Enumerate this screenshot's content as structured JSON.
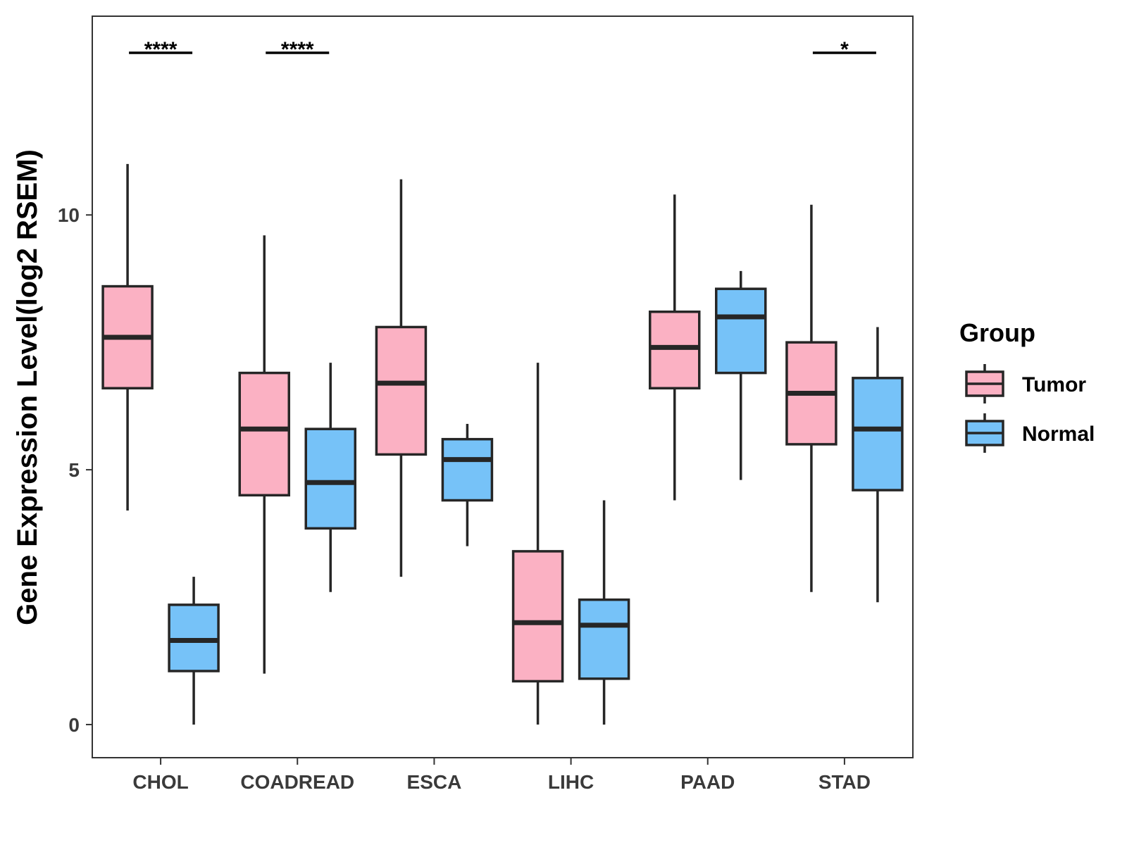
{
  "chart_data": {
    "type": "boxplot",
    "title": "",
    "xlabel": "",
    "ylabel": "Gene Expression Level(log2 RSEM)",
    "ylim": [
      -0.65,
      13.9
    ],
    "yticks": [
      0,
      5,
      10
    ],
    "ytick_labels": [
      "0",
      "5",
      "10"
    ],
    "grid": false,
    "categories": [
      "CHOL",
      "COADREAD",
      "ESCA",
      "LIHC",
      "PAAD",
      "STAD"
    ],
    "series": [
      {
        "name": "Tumor",
        "color": "#FBB1C3",
        "boxes": [
          {
            "whisker_low": 4.2,
            "q1": 6.6,
            "median": 7.6,
            "q3": 8.6,
            "whisker_high": 11.0
          },
          {
            "whisker_low": 1.0,
            "q1": 4.5,
            "median": 5.8,
            "q3": 6.9,
            "whisker_high": 9.6
          },
          {
            "whisker_low": 2.9,
            "q1": 5.3,
            "median": 6.7,
            "q3": 7.8,
            "whisker_high": 10.7
          },
          {
            "whisker_low": 0.0,
            "q1": 0.85,
            "median": 2.0,
            "q3": 3.4,
            "whisker_high": 7.1
          },
          {
            "whisker_low": 4.4,
            "q1": 6.6,
            "median": 7.4,
            "q3": 8.1,
            "whisker_high": 10.4
          },
          {
            "whisker_low": 2.6,
            "q1": 5.5,
            "median": 6.5,
            "q3": 7.5,
            "whisker_high": 10.2
          }
        ]
      },
      {
        "name": "Normal",
        "color": "#76C2F8",
        "boxes": [
          {
            "whisker_low": 0.0,
            "q1": 1.05,
            "median": 1.65,
            "q3": 2.35,
            "whisker_high": 2.9
          },
          {
            "whisker_low": 2.6,
            "q1": 3.85,
            "median": 4.75,
            "q3": 5.8,
            "whisker_high": 7.1
          },
          {
            "whisker_low": 3.5,
            "q1": 4.4,
            "median": 5.2,
            "q3": 5.6,
            "whisker_high": 5.9
          },
          {
            "whisker_low": 0.0,
            "q1": 0.9,
            "median": 1.95,
            "q3": 2.45,
            "whisker_high": 4.4
          },
          {
            "whisker_low": 4.8,
            "q1": 6.9,
            "median": 8.0,
            "q3": 8.55,
            "whisker_high": 8.9
          },
          {
            "whisker_low": 2.4,
            "q1": 4.6,
            "median": 5.8,
            "q3": 6.8,
            "whisker_high": 7.8
          }
        ]
      }
    ],
    "significance": [
      {
        "category": "CHOL",
        "label": "****"
      },
      {
        "category": "COADREAD",
        "label": "****"
      },
      {
        "category": "ESCA",
        "label": ""
      },
      {
        "category": "LIHC",
        "label": ""
      },
      {
        "category": "PAAD",
        "label": ""
      },
      {
        "category": "STAD",
        "label": "*"
      }
    ],
    "legend": {
      "title": "Group",
      "position": "right",
      "items": [
        "Tumor",
        "Normal"
      ]
    }
  }
}
